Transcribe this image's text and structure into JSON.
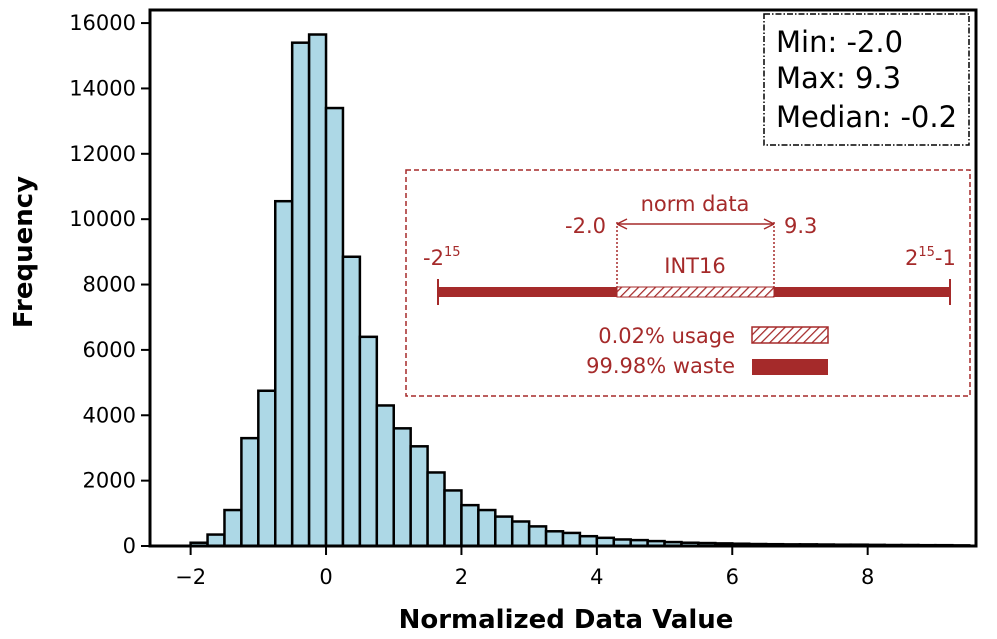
{
  "chart_data": {
    "type": "bar",
    "subtype": "histogram",
    "xlabel": "Normalized Data Value",
    "ylabel": "Frequency",
    "xlim": [
      -2.6,
      9.6
    ],
    "ylim": [
      0,
      16400
    ],
    "xticks": [
      -2,
      0,
      2,
      4,
      6,
      8
    ],
    "xtick_labels": [
      "−2",
      "0",
      "2",
      "4",
      "6",
      "8"
    ],
    "yticks": [
      0,
      2000,
      4000,
      6000,
      8000,
      10000,
      12000,
      14000,
      16000
    ],
    "ytick_labels": [
      "0",
      "2000",
      "4000",
      "6000",
      "8000",
      "10000",
      "12000",
      "14000",
      "16000"
    ],
    "bin_start": -2.0,
    "bin_width": 0.25,
    "values": [
      100,
      350,
      1100,
      3300,
      4750,
      10550,
      15400,
      15650,
      13400,
      8850,
      6400,
      4300,
      3600,
      3050,
      2250,
      1700,
      1250,
      1100,
      900,
      750,
      600,
      450,
      400,
      300,
      250,
      200,
      180,
      150,
      120,
      100,
      90,
      80,
      70,
      60,
      55,
      50,
      50,
      45,
      40,
      40,
      35,
      30,
      30,
      25,
      25,
      20
    ],
    "bar_color": "#add8e6",
    "edge_color": "#000000",
    "stats_box": {
      "min_label": "Min: -2.0",
      "max_label": "Max: 9.3",
      "median_label": "Median: -0.2"
    },
    "inset": {
      "color": "#a52a2a",
      "range_min_base": "-2",
      "range_min_exp": "15",
      "range_max_base": "2",
      "range_max_exp": "15",
      "range_max_suffix": "-1",
      "data_min_label": "-2.0",
      "data_max_label": "9.3",
      "norm_data_label": "norm data",
      "format_label": "INT16",
      "usage_label": "0.02% usage",
      "waste_label": "99.98% waste"
    }
  }
}
